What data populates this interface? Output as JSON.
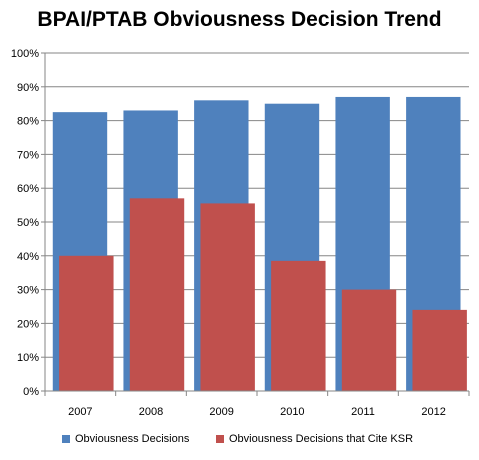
{
  "chart_data": {
    "type": "bar",
    "title": "BPAI/PTAB Obviousness Decision Trend",
    "categories": [
      "2007",
      "2008",
      "2009",
      "2010",
      "2011",
      "2012"
    ],
    "series": [
      {
        "name": "Obviousness Decisions",
        "values": [
          82.5,
          83,
          86,
          85,
          87,
          87
        ],
        "color": "#4f81bd"
      },
      {
        "name": "Obviousness Decisions that Cite KSR",
        "values": [
          40,
          57,
          55.5,
          38.5,
          30,
          24
        ],
        "color": "#c0504d"
      }
    ],
    "ylim": [
      0,
      100
    ],
    "yticks": [
      "0%",
      "10%",
      "20%",
      "30%",
      "40%",
      "50%",
      "60%",
      "70%",
      "80%",
      "90%",
      "100%"
    ],
    "grid": true,
    "legend": "bottom"
  }
}
